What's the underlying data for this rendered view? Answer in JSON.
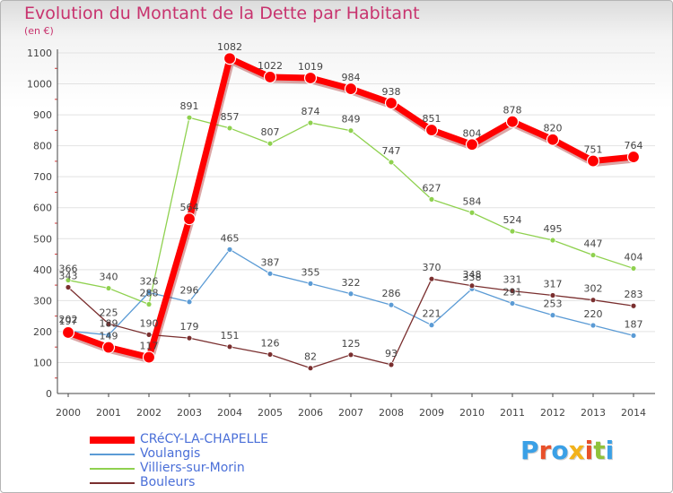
{
  "header": {
    "title": "Evolution du Montant de la Dette par Habitant",
    "subtitle": "(en €)"
  },
  "logo": {
    "text": "Proxiti",
    "colors": [
      "#3aa0e6",
      "#e8502a",
      "#3aa0e6",
      "#f2b21b",
      "#e8502a",
      "#8fc23b",
      "#3aa0e6"
    ]
  },
  "chart_data": {
    "type": "line",
    "title": "Evolution du Montant de la Dette par Habitant",
    "ylabel": "(en €)",
    "xlabel": "",
    "ylim": [
      0,
      1100
    ],
    "y_ticks": [
      0,
      100,
      200,
      300,
      400,
      500,
      600,
      700,
      800,
      900,
      1000,
      1100
    ],
    "grid": "horizontal",
    "legend_position": "bottom-left",
    "x": [
      "2000",
      "2001",
      "2002",
      "2003",
      "2004",
      "2005",
      "2006",
      "2007",
      "2008",
      "2009",
      "2010",
      "2011",
      "2012",
      "2013",
      "2014"
    ],
    "series": [
      {
        "name": "Villiers-sur-Morin",
        "color": "#8fd14f",
        "values": [
          366,
          340,
          288,
          891,
          857,
          807,
          874,
          849,
          747,
          627,
          584,
          524,
          495,
          447,
          404
        ],
        "labels": [
          "366",
          "340",
          "288",
          "891",
          "857",
          "807",
          "874",
          "849",
          "747",
          "627",
          "584",
          "524",
          "495",
          "447",
          "404"
        ]
      },
      {
        "name": "Voulangis",
        "color": "#5b9bd5",
        "values": [
          202,
          189,
          326,
          296,
          465,
          387,
          355,
          322,
          286,
          221,
          338,
          291,
          253,
          220,
          187
        ],
        "labels": [
          "202",
          "189",
          "326",
          "296",
          "465",
          "387",
          "355",
          "322",
          "286",
          "221",
          "338",
          "291",
          "253",
          "220",
          "187"
        ]
      },
      {
        "name": "Bouleurs",
        "color": "#7a2f2f",
        "values": [
          343,
          225,
          190,
          179,
          151,
          126,
          82,
          125,
          93,
          370,
          348,
          331,
          317,
          302,
          283
        ],
        "labels": [
          "343",
          "225",
          "190",
          "179",
          "151",
          "126",
          "82",
          "125",
          "93",
          "370",
          "348",
          "331",
          "317",
          "302",
          "283"
        ]
      },
      {
        "name": "CRéCY-LA-CHAPELLE",
        "color": "#ff0000",
        "values": [
          197,
          149,
          117,
          564,
          1082,
          1022,
          1019,
          984,
          938,
          851,
          804,
          878,
          820,
          751,
          764
        ],
        "labels": [
          "197",
          "149",
          "117",
          "564",
          "1082",
          "1022",
          "1019",
          "984",
          "938",
          "851",
          "804",
          "878",
          "820",
          "751",
          "764"
        ]
      }
    ],
    "legend": [
      "CRéCY-LA-CHAPELLE",
      "Voulangis",
      "Villiers-sur-Morin",
      "Bouleurs"
    ]
  }
}
